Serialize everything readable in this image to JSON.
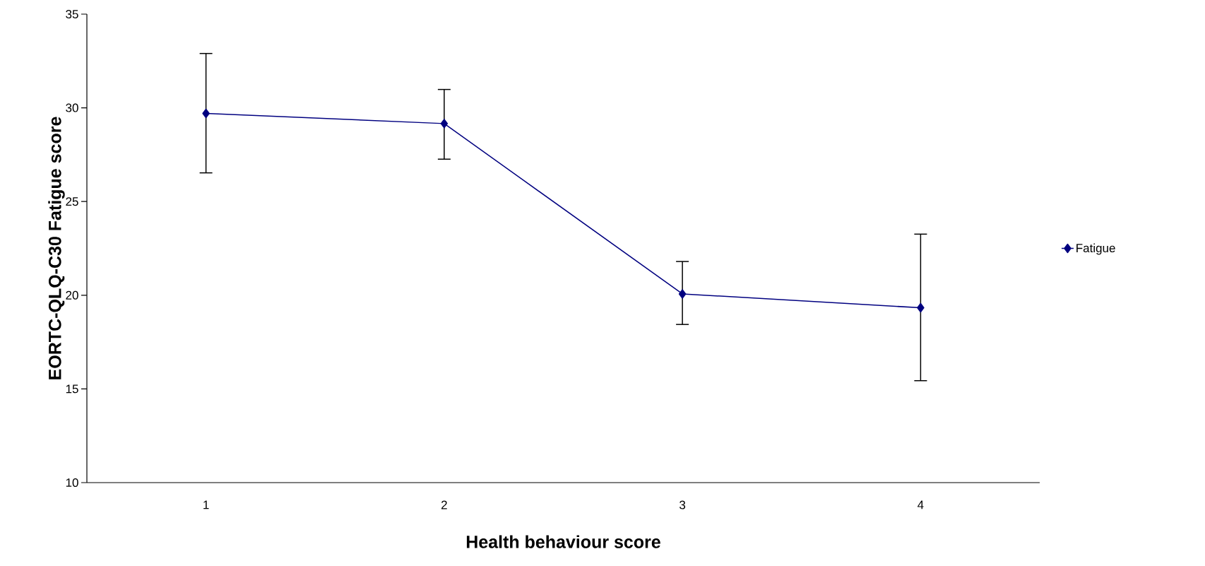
{
  "chart_data": {
    "type": "line",
    "xlabel": "Health behaviour score",
    "ylabel": "EORTC-QLQ-C30 Fatigue score",
    "categories": [
      "1",
      "2",
      "3",
      "4"
    ],
    "series": [
      {
        "name": "Fatigue",
        "color": "#000080",
        "values": [
          29.7,
          29.16,
          20.07,
          19.33
        ],
        "errors": [
          [
            26.53,
            32.9
          ],
          [
            27.26,
            30.98
          ],
          [
            18.44,
            21.8
          ],
          [
            15.44,
            23.26
          ]
        ]
      }
    ],
    "ylim": [
      10,
      35
    ],
    "yticks": [
      10,
      15,
      20,
      25,
      30,
      35
    ],
    "grid": false,
    "legend": "right",
    "marker": "diamond",
    "line_style": "solid"
  }
}
